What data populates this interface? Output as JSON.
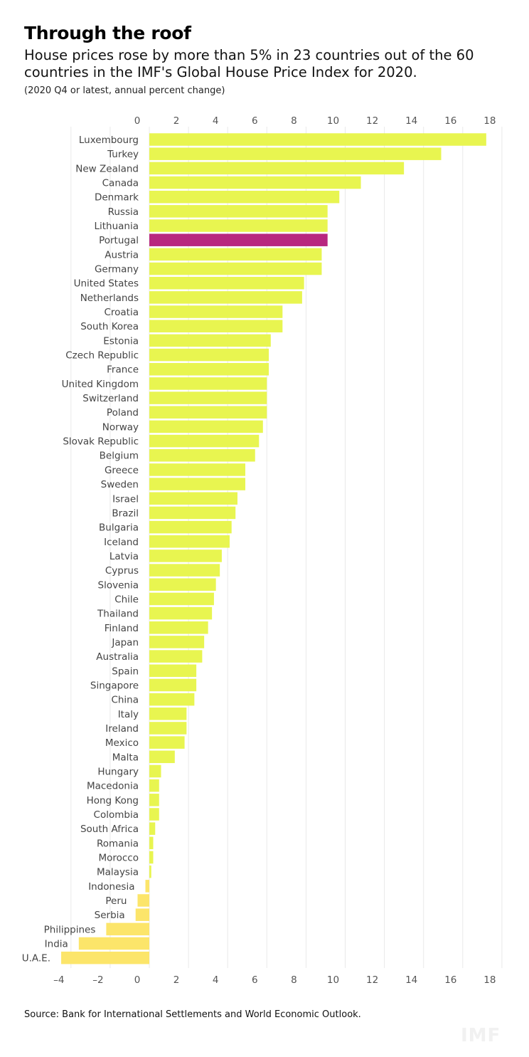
{
  "title": "Through the roof",
  "subtitle": "House prices rose by more than 5% in 23 countries out of the 60 countries in the IMF's Global House Price Index for 2020.",
  "note": "(2020 Q4 or latest, annual percent change)",
  "source": "Source: Bank for International Settlements and World Economic Outlook.",
  "watermark": "IMF",
  "chart_data": {
    "type": "bar",
    "orientation": "horizontal",
    "xlim": [
      -4,
      18
    ],
    "xticks": [
      -4,
      -2,
      0,
      2,
      4,
      6,
      8,
      10,
      12,
      14,
      16,
      18
    ],
    "xtick_labels": [
      "–4",
      "–2",
      "0",
      "2",
      "4",
      "6",
      "8",
      "10",
      "12",
      "14",
      "16",
      "18"
    ],
    "top_axis_labels": [
      "0",
      "2",
      "4",
      "6",
      "8",
      "10",
      "12",
      "14",
      "16",
      "18"
    ],
    "grid": true,
    "bar_color": "#e8f550",
    "negative_bar_color": "#fce56a",
    "highlight_color": "#b8277f",
    "highlight": "Portugal",
    "categories": [
      "Luxembourg",
      "Turkey",
      "New Zealand",
      "Canada",
      "Denmark",
      "Russia",
      "Lithuania",
      "Portugal",
      "Austria",
      "Germany",
      "United States",
      "Netherlands",
      "Croatia",
      "South Korea",
      "Estonia",
      "Czech Republic",
      "France",
      "United Kingdom",
      "Switzerland",
      "Poland",
      "Norway",
      "Slovak Republic",
      "Belgium",
      "Greece",
      "Sweden",
      "Israel",
      "Brazil",
      "Bulgaria",
      "Iceland",
      "Latvia",
      "Cyprus",
      "Slovenia",
      "Chile",
      "Thailand",
      "Finland",
      "Japan",
      "Australia",
      "Spain",
      "Singapore",
      "China",
      "Italy",
      "Ireland",
      "Mexico",
      "Malta",
      "Hungary",
      "Macedonia",
      "Hong Kong",
      "Colombia",
      "South Africa",
      "Romania",
      "Morocco",
      "Malaysia",
      "Indonesia",
      "Peru",
      "Serbia",
      "Philippines",
      "India",
      "U.A.E."
    ],
    "values": [
      17.2,
      14.9,
      13.0,
      10.8,
      9.7,
      9.1,
      9.1,
      9.1,
      8.8,
      8.8,
      7.9,
      7.8,
      6.8,
      6.8,
      6.2,
      6.1,
      6.1,
      6.0,
      6.0,
      6.0,
      5.8,
      5.6,
      5.4,
      4.9,
      4.9,
      4.5,
      4.4,
      4.2,
      4.1,
      3.7,
      3.6,
      3.4,
      3.3,
      3.2,
      3.0,
      2.8,
      2.7,
      2.4,
      2.4,
      2.3,
      1.9,
      1.9,
      1.8,
      1.3,
      0.6,
      0.5,
      0.5,
      0.5,
      0.3,
      0.2,
      0.2,
      0.1,
      -0.2,
      -0.6,
      -0.7,
      -2.2,
      -3.6,
      -4.5
    ]
  }
}
